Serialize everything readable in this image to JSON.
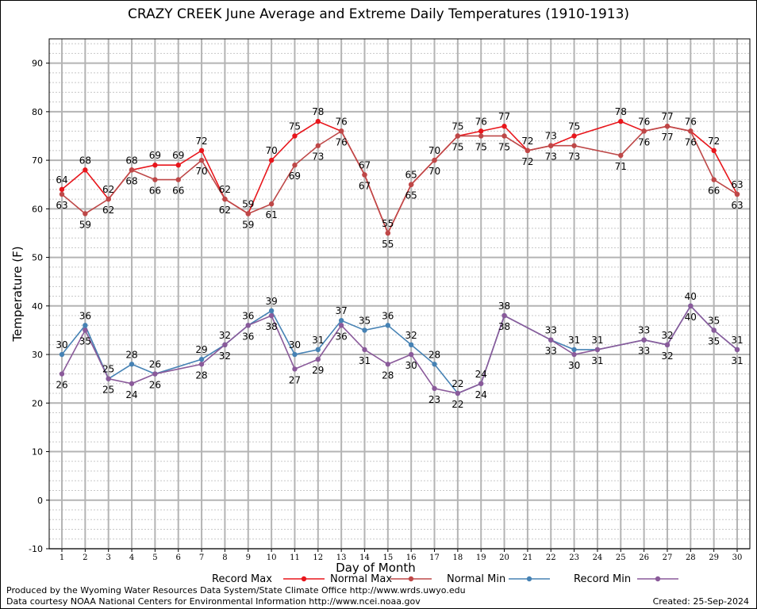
{
  "chart_data": {
    "type": "line",
    "title": "CRAZY CREEK June Average and Extreme Daily Temperatures (1910-1913)",
    "xlabel": "Day of Month",
    "ylabel": "Temperature (F)",
    "xlim": [
      1,
      30
    ],
    "ylim": [
      -10,
      95
    ],
    "y_ticks": [
      -10,
      0,
      10,
      20,
      30,
      40,
      50,
      60,
      70,
      80,
      90
    ],
    "x": [
      1,
      2,
      3,
      4,
      5,
      6,
      7,
      8,
      9,
      10,
      11,
      12,
      13,
      14,
      15,
      16,
      17,
      18,
      19,
      20,
      21,
      22,
      23,
      24,
      25,
      26,
      27,
      28,
      29,
      30
    ],
    "grid": true,
    "legend_position": "bottom",
    "series": [
      {
        "name": "Record Max",
        "color": "#e8161c",
        "label_position": "above",
        "values": [
          64,
          68,
          62,
          68,
          69,
          69,
          72,
          62,
          59,
          70,
          75,
          78,
          76,
          67,
          55,
          65,
          70,
          75,
          76,
          77,
          72,
          73,
          75,
          null,
          78,
          76,
          77,
          76,
          72,
          63
        ]
      },
      {
        "name": "Normal Max",
        "color": "#be4848",
        "label_position": "below",
        "values": [
          63,
          59,
          62,
          68,
          66,
          66,
          70,
          62,
          59,
          61,
          69,
          73,
          76,
          67,
          55,
          65,
          70,
          75,
          75,
          75,
          72,
          73,
          73,
          null,
          71,
          76,
          77,
          76,
          66,
          63
        ]
      },
      {
        "name": "Normal Min",
        "color": "#4682b4",
        "label_position": "above",
        "values": [
          30,
          36,
          25,
          28,
          26,
          null,
          29,
          32,
          36,
          39,
          30,
          31,
          37,
          35,
          36,
          32,
          28,
          22,
          24,
          38,
          null,
          33,
          31,
          31,
          null,
          33,
          32,
          40,
          35,
          31
        ]
      },
      {
        "name": "Record Min",
        "color": "#8a5a9a",
        "label_position": "below",
        "values": [
          26,
          35,
          25,
          24,
          26,
          null,
          28,
          32,
          36,
          38,
          27,
          29,
          36,
          31,
          28,
          30,
          23,
          22,
          24,
          38,
          null,
          33,
          30,
          31,
          null,
          33,
          32,
          40,
          35,
          31
        ]
      }
    ]
  },
  "footer": {
    "credit_line1": "Produced by the Wyoming Water Resources Data System/State Climate Office http://www.wrds.uwyo.edu",
    "credit_line2": "Data courtesy NOAA National Centers for Environmental Information http://www.ncei.noaa.gov",
    "created": "Created:  25-Sep-2024"
  }
}
